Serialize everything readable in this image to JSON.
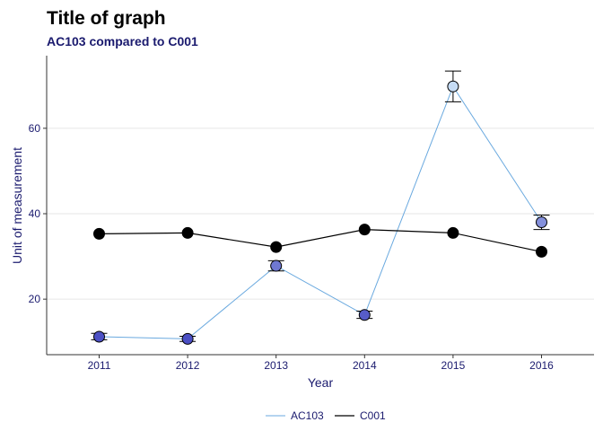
{
  "chart_data": {
    "type": "line",
    "title": "Title of graph",
    "subtitle": "AC103 compared to C001",
    "xlabel": "Year",
    "ylabel": "Unit of measurement",
    "categories": [
      "2011",
      "2012",
      "2013",
      "2014",
      "2015",
      "2016"
    ],
    "ylim": [
      7,
      77
    ],
    "yticks": [
      20,
      40,
      60
    ],
    "grid": "horizontal",
    "legend_position": "bottom",
    "series": [
      {
        "name": "AC103",
        "values": [
          11.2,
          10.7,
          27.8,
          16.3,
          69.8,
          38.0
        ],
        "error_low": [
          10.5,
          10.1,
          26.6,
          15.5,
          66.2,
          36.3
        ],
        "error_high": [
          12.0,
          11.3,
          29.0,
          17.2,
          73.4,
          39.7
        ],
        "line_color": "#6aa9df",
        "point_fill_light": "#c6dcf5",
        "point_fill_dark": "#4b4fc4"
      },
      {
        "name": "C001",
        "values": [
          35.3,
          35.5,
          32.2,
          36.3,
          35.5,
          31.1
        ],
        "line_color": "#000000",
        "point_fill": "#000000"
      }
    ]
  }
}
